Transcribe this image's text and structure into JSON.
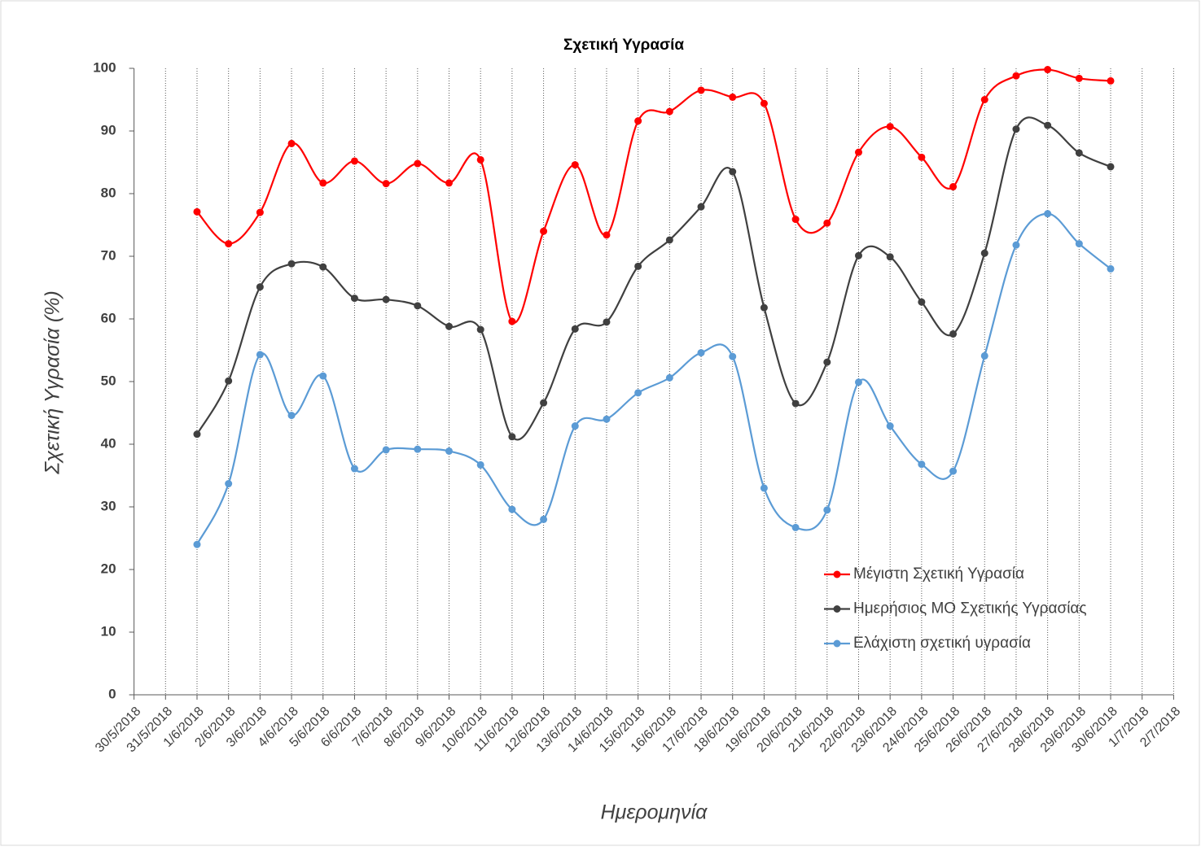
{
  "chart_data": {
    "type": "line",
    "title": "Σχετική Υγρασία",
    "x_label": "Ημερομηνία",
    "y_label": "Σχετική Υγρασία (%)",
    "categories": [
      "30/5/2018",
      "31/5/2018",
      "1/6/2018",
      "2/6/2018",
      "3/6/2018",
      "4/6/2018",
      "5/6/2018",
      "6/6/2018",
      "7/6/2018",
      "8/6/2018",
      "9/6/2018",
      "10/6/2018",
      "11/6/2018",
      "12/6/2018",
      "13/6/2018",
      "14/6/2018",
      "15/6/2018",
      "16/6/2018",
      "17/6/2018",
      "18/6/2018",
      "19/6/2018",
      "20/6/2018",
      "21/6/2018",
      "22/6/2018",
      "23/6/2018",
      "24/6/2018",
      "25/6/2018",
      "26/6/2018",
      "27/6/2018",
      "28/6/2018",
      "29/6/2018",
      "30/6/2018",
      "1/7/2018",
      "2/7/2018"
    ],
    "series": [
      {
        "name": "Μέγιστη Σχετική Υγρασία",
        "color": "#ff0000",
        "values": [
          null,
          null,
          77.1,
          72,
          77,
          88,
          81.7,
          85.2,
          81.6,
          84.8,
          81.7,
          85.4,
          59.6,
          74,
          84.6,
          73.4,
          91.6,
          93.1,
          96.5,
          95.4,
          94.4,
          75.9,
          75.3,
          86.6,
          90.7,
          85.8,
          81.1,
          95,
          98.8,
          99.8,
          98.4,
          98,
          null,
          null
        ]
      },
      {
        "name": "Ημερήσιος ΜΟ Σχετικής Υγρασίας",
        "color": "#404040",
        "values": [
          null,
          null,
          41.6,
          50.1,
          65.1,
          68.8,
          68.3,
          63.3,
          63.1,
          62.1,
          58.8,
          58.3,
          41.2,
          46.6,
          58.4,
          59.5,
          68.4,
          72.6,
          77.9,
          83.5,
          61.8,
          46.5,
          53.1,
          70.1,
          69.9,
          62.7,
          57.6,
          70.5,
          90.3,
          90.9,
          86.5,
          84.3,
          null,
          null
        ]
      },
      {
        "name": "Ελάχιστη σχετική υγρασία",
        "color": "#5b9bd5",
        "values": [
          null,
          null,
          24,
          33.7,
          54.3,
          44.6,
          50.9,
          36.1,
          39.1,
          39.2,
          38.9,
          36.7,
          29.6,
          28,
          42.9,
          44,
          48.2,
          50.6,
          54.6,
          54,
          33,
          26.7,
          29.5,
          49.9,
          42.9,
          36.8,
          35.7,
          54.1,
          71.8,
          76.8,
          72,
          68,
          null,
          null
        ]
      }
    ],
    "ylim": [
      0,
      100
    ],
    "yticks": [
      0,
      10,
      20,
      30,
      40,
      50,
      60,
      70,
      80,
      90,
      100
    ],
    "grid": true,
    "smooth": true,
    "legend": "lower right"
  }
}
